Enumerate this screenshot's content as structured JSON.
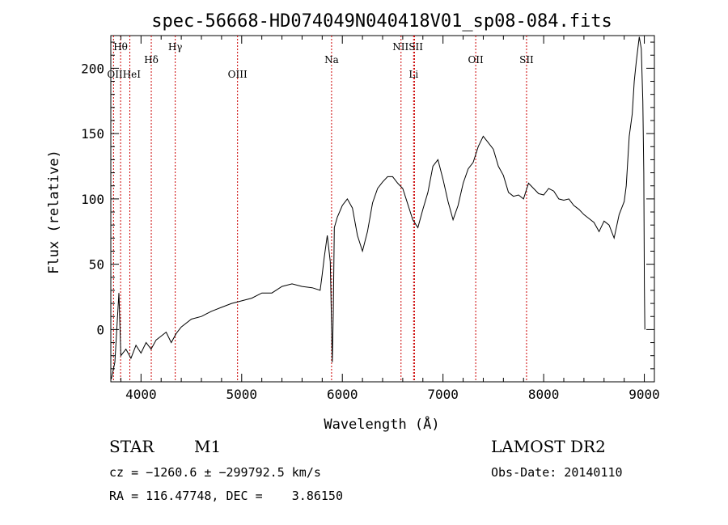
{
  "chart_data": {
    "type": "line",
    "title": "spec-56668-HD074049N040418V01_sp08-084.fits",
    "xlabel": "Wavelength (Å)",
    "ylabel": "Flux (relative)",
    "xlim": [
      3700,
      9100
    ],
    "ylim": [
      -40,
      225
    ],
    "grid": false,
    "x_ticks": [
      4000,
      5000,
      6000,
      7000,
      8000,
      9000
    ],
    "x_tick_labels": [
      "4000",
      "5000",
      "6000",
      "7000",
      "8000",
      "9000"
    ],
    "y_ticks": [
      0,
      50,
      100,
      150,
      200
    ],
    "y_tick_labels": [
      "0",
      "50",
      "100",
      "150",
      "200"
    ],
    "series": [
      {
        "x": [
          3705,
          3740,
          3780,
          3800,
          3850,
          3900,
          3950,
          4000,
          4050,
          4100,
          4150,
          4200,
          4250,
          4300,
          4350,
          4400,
          4500,
          4600,
          4700,
          4800,
          4900,
          5000,
          5100,
          5200,
          5300,
          5400,
          5500,
          5600,
          5700,
          5780,
          5800,
          5820,
          5850,
          5880,
          5900,
          5910,
          5920,
          5950,
          6000,
          6050,
          6100,
          6150,
          6200,
          6250,
          6300,
          6350,
          6400,
          6450,
          6500,
          6550,
          6600,
          6650,
          6700,
          6750,
          6800,
          6850,
          6900,
          6950,
          7000,
          7050,
          7100,
          7150,
          7200,
          7250,
          7300,
          7350,
          7400,
          7450,
          7500,
          7550,
          7600,
          7650,
          7700,
          7750,
          7800,
          7850,
          7900,
          7950,
          8000,
          8050,
          8100,
          8150,
          8200,
          8250,
          8300,
          8350,
          8400,
          8450,
          8500,
          8550,
          8600,
          8650,
          8700,
          8750,
          8800,
          8820,
          8850,
          8880,
          8900,
          8920,
          8950,
          8970,
          8985,
          8995,
          9000,
          9005
        ],
        "y": [
          -38,
          -25,
          28,
          -20,
          -15,
          -22,
          -12,
          -18,
          -10,
          -15,
          -8,
          -5,
          -2,
          -10,
          -3,
          2,
          8,
          10,
          14,
          17,
          20,
          22,
          24,
          28,
          28,
          33,
          35,
          33,
          32,
          30,
          42,
          55,
          72,
          52,
          -25,
          12,
          78,
          86,
          95,
          100,
          93,
          72,
          60,
          75,
          97,
          108,
          113,
          117,
          117,
          112,
          108,
          96,
          84,
          78,
          92,
          105,
          125,
          130,
          115,
          98,
          84,
          95,
          112,
          123,
          128,
          140,
          148,
          143,
          138,
          125,
          118,
          105,
          102,
          103,
          100,
          112,
          108,
          104,
          103,
          108,
          106,
          100,
          99,
          100,
          95,
          92,
          88,
          85,
          82,
          75,
          83,
          80,
          70,
          88,
          98,
          110,
          148,
          165,
          190,
          205,
          224,
          215,
          175,
          120,
          35,
          0
        ]
      }
    ],
    "annotations_top_row": [
      "Hθ",
      "Hγ",
      "NIISII"
    ],
    "annotations_mid_row": [
      "Hδ",
      "Na",
      "OII",
      "SII"
    ],
    "annotations_low_row": [
      "OIIHeI",
      "OIII",
      "Li"
    ],
    "spectral_lines": [
      {
        "label": "Hθ",
        "wavelength": 3797
      },
      {
        "label": "OII",
        "wavelength": 3727
      },
      {
        "label": "HeI",
        "wavelength": 3889
      },
      {
        "label": "Hδ",
        "wavelength": 4102
      },
      {
        "label": "Hγ",
        "wavelength": 4340
      },
      {
        "label": "OIII",
        "wavelength": 4959
      },
      {
        "label": "Na",
        "wavelength": 5893
      },
      {
        "label": "NII",
        "wavelength": 6583
      },
      {
        "label": "Li",
        "wavelength": 6708
      },
      {
        "label": "SII",
        "wavelength": 6717
      },
      {
        "label": "OII",
        "wavelength": 7325
      },
      {
        "label": "SII",
        "wavelength": 7830
      }
    ],
    "line_color": "#000000",
    "marker_line_color": "#cc0000"
  },
  "info": {
    "class_label": "STAR",
    "subclass": "M1",
    "survey": "LAMOST DR2",
    "cz_line": "cz = −1260.6 ± −299792.5 km/s",
    "obs_date": "Obs-Date: 20140110",
    "radec_line": "RA = 116.47748, DEC =    3.86150"
  }
}
